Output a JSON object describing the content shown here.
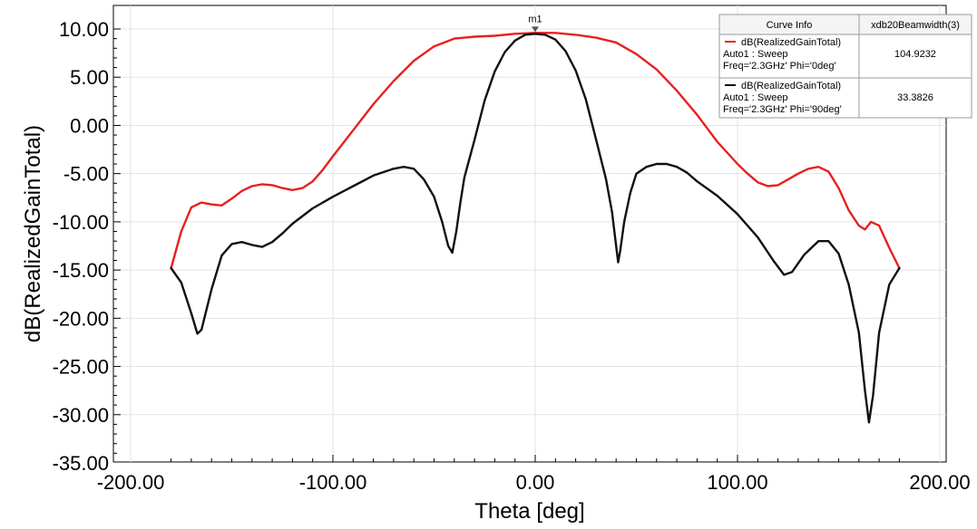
{
  "chart_data": {
    "type": "line",
    "xlabel": "Theta [deg]",
    "ylabel": "dB(RealizedGainTotal)",
    "xlim": [
      -200,
      200
    ],
    "ylim": [
      -35,
      10
    ],
    "x_ticks": [
      -200,
      -100,
      0,
      100,
      200
    ],
    "x_tick_labels": [
      "-200.00",
      "-100.00",
      "0.00",
      "100.00",
      "200.00"
    ],
    "y_ticks": [
      10,
      5,
      0,
      -5,
      -10,
      -15,
      -20,
      -25,
      -30,
      -35
    ],
    "y_tick_labels": [
      "10.00",
      "5.00",
      "0.00",
      "-5.00",
      "-10.00",
      "-15.00",
      "-20.00",
      "-25.00",
      "-30.00",
      "-35.00"
    ],
    "grid": true,
    "marker": {
      "label": "m1",
      "x": 0,
      "y": 9.4
    },
    "legend": {
      "position": "top-right",
      "header": [
        "Curve Info",
        "xdb20Beamwidth(3)"
      ],
      "entries": [
        {
          "lines": [
            "dB(RealizedGainTotal)",
            "Auto1 : Sweep",
            "Freq='2.3GHz' Phi='0deg'"
          ],
          "value": "104.9232",
          "color": "#e8201f"
        },
        {
          "lines": [
            "dB(RealizedGainTotal)",
            "Auto1 : Sweep",
            "Freq='2.3GHz' Phi='90deg'"
          ],
          "value": "33.3826",
          "color": "#111111"
        }
      ]
    },
    "series": [
      {
        "color": "#e8201f",
        "points": [
          [
            -180,
            -14.8
          ],
          [
            -175,
            -11
          ],
          [
            -170,
            -8.5
          ],
          [
            -165,
            -8
          ],
          [
            -160,
            -8.2
          ],
          [
            -155,
            -8.3
          ],
          [
            -150,
            -7.6
          ],
          [
            -145,
            -6.8
          ],
          [
            -140,
            -6.3
          ],
          [
            -135,
            -6.1
          ],
          [
            -130,
            -6.2
          ],
          [
            -125,
            -6.5
          ],
          [
            -120,
            -6.7
          ],
          [
            -115,
            -6.5
          ],
          [
            -110,
            -5.8
          ],
          [
            -105,
            -4.6
          ],
          [
            -100,
            -3.2
          ],
          [
            -90,
            -0.5
          ],
          [
            -80,
            2.2
          ],
          [
            -70,
            4.6
          ],
          [
            -60,
            6.7
          ],
          [
            -50,
            8.2
          ],
          [
            -40,
            9.0
          ],
          [
            -30,
            9.2
          ],
          [
            -20,
            9.3
          ],
          [
            -10,
            9.5
          ],
          [
            0,
            9.6
          ],
          [
            10,
            9.6
          ],
          [
            20,
            9.4
          ],
          [
            30,
            9.1
          ],
          [
            40,
            8.6
          ],
          [
            50,
            7.4
          ],
          [
            60,
            5.8
          ],
          [
            70,
            3.6
          ],
          [
            80,
            1.1
          ],
          [
            90,
            -1.7
          ],
          [
            100,
            -4.0
          ],
          [
            105,
            -5.0
          ],
          [
            110,
            -5.9
          ],
          [
            115,
            -6.3
          ],
          [
            120,
            -6.2
          ],
          [
            125,
            -5.6
          ],
          [
            130,
            -5.0
          ],
          [
            135,
            -4.5
          ],
          [
            140,
            -4.3
          ],
          [
            145,
            -4.8
          ],
          [
            150,
            -6.5
          ],
          [
            155,
            -8.8
          ],
          [
            160,
            -10.4
          ],
          [
            163,
            -10.8
          ],
          [
            166,
            -10.0
          ],
          [
            170,
            -10.4
          ],
          [
            175,
            -12.7
          ],
          [
            180,
            -14.8
          ]
        ]
      },
      {
        "color": "#111111",
        "points": [
          [
            -180,
            -14.8
          ],
          [
            -175,
            -16.3
          ],
          [
            -170,
            -19.5
          ],
          [
            -167,
            -21.6
          ],
          [
            -165,
            -21.2
          ],
          [
            -160,
            -17.0
          ],
          [
            -155,
            -13.5
          ],
          [
            -150,
            -12.3
          ],
          [
            -145,
            -12.1
          ],
          [
            -140,
            -12.4
          ],
          [
            -135,
            -12.6
          ],
          [
            -130,
            -12.1
          ],
          [
            -125,
            -11.2
          ],
          [
            -120,
            -10.2
          ],
          [
            -110,
            -8.6
          ],
          [
            -100,
            -7.4
          ],
          [
            -90,
            -6.3
          ],
          [
            -80,
            -5.2
          ],
          [
            -70,
            -4.5
          ],
          [
            -65,
            -4.3
          ],
          [
            -60,
            -4.5
          ],
          [
            -55,
            -5.6
          ],
          [
            -50,
            -7.4
          ],
          [
            -46,
            -10.0
          ],
          [
            -43,
            -12.5
          ],
          [
            -41,
            -13.2
          ],
          [
            -39,
            -11.0
          ],
          [
            -37,
            -8.0
          ],
          [
            -35,
            -5.4
          ],
          [
            -30,
            -1.5
          ],
          [
            -25,
            2.6
          ],
          [
            -20,
            5.6
          ],
          [
            -15,
            7.6
          ],
          [
            -10,
            8.8
          ],
          [
            -5,
            9.4
          ],
          [
            0,
            9.5
          ],
          [
            5,
            9.4
          ],
          [
            10,
            8.9
          ],
          [
            15,
            7.7
          ],
          [
            20,
            5.7
          ],
          [
            25,
            2.7
          ],
          [
            30,
            -1.4
          ],
          [
            35,
            -5.6
          ],
          [
            38,
            -9.0
          ],
          [
            40,
            -12.5
          ],
          [
            41,
            -14.2
          ],
          [
            42,
            -13.0
          ],
          [
            44,
            -10.0
          ],
          [
            47,
            -7.0
          ],
          [
            50,
            -5.0
          ],
          [
            55,
            -4.3
          ],
          [
            60,
            -4.0
          ],
          [
            65,
            -4.0
          ],
          [
            70,
            -4.3
          ],
          [
            75,
            -4.9
          ],
          [
            80,
            -5.8
          ],
          [
            90,
            -7.3
          ],
          [
            100,
            -9.2
          ],
          [
            110,
            -11.6
          ],
          [
            118,
            -14.1
          ],
          [
            123,
            -15.5
          ],
          [
            127,
            -15.2
          ],
          [
            133,
            -13.4
          ],
          [
            140,
            -12.0
          ],
          [
            145,
            -12.0
          ],
          [
            150,
            -13.3
          ],
          [
            155,
            -16.5
          ],
          [
            160,
            -21.5
          ],
          [
            163,
            -27.5
          ],
          [
            165,
            -30.8
          ],
          [
            167,
            -28.0
          ],
          [
            170,
            -21.5
          ],
          [
            175,
            -16.5
          ],
          [
            180,
            -14.8
          ]
        ]
      }
    ]
  }
}
